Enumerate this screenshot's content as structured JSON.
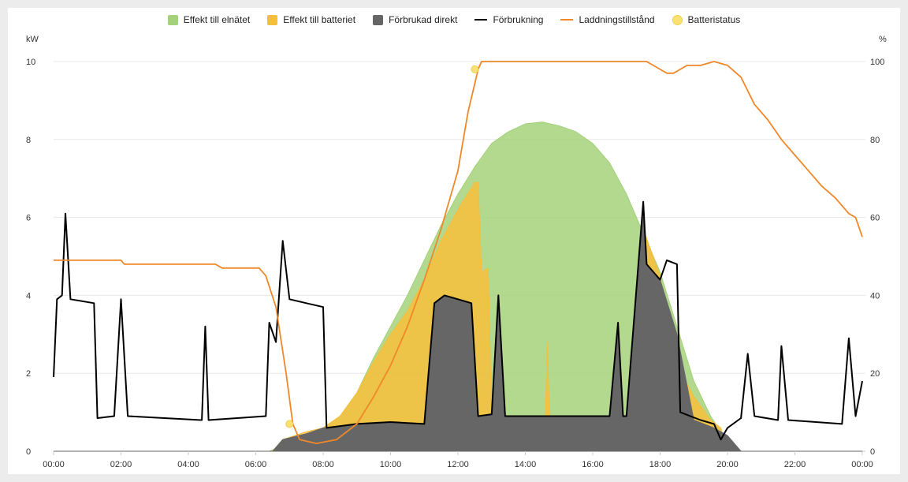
{
  "legend": [
    {
      "label": "Effekt till elnätet",
      "color": "#a4d27a",
      "shape": "box"
    },
    {
      "label": "Effekt till batteriet",
      "color": "#f7be3c",
      "shape": "box"
    },
    {
      "label": "Förbrukad direkt",
      "color": "#666666",
      "shape": "box"
    },
    {
      "label": "Förbrukning",
      "color": "#000000",
      "shape": "line"
    },
    {
      "label": "Laddningstillstånd",
      "color": "#f0882a",
      "shape": "line"
    },
    {
      "label": "Batteristatus",
      "color": "#fae174",
      "shape": "circle"
    }
  ],
  "chart_data": {
    "type": "area",
    "ylabel_left": "kW",
    "ylabel_right": "%",
    "ylim_left": [
      0,
      10
    ],
    "ylim_right": [
      0,
      100
    ],
    "yticks_left": [
      "0",
      "2",
      "4",
      "6",
      "8",
      "10"
    ],
    "yticks_right": [
      "0",
      "20",
      "40",
      "60",
      "80",
      "100"
    ],
    "xlim_hours": [
      0,
      24
    ],
    "xticks": [
      "00:00",
      "02:00",
      "04:00",
      "06:00",
      "08:00",
      "10:00",
      "12:00",
      "14:00",
      "16:00",
      "18:00",
      "20:00",
      "22:00",
      "00:00"
    ],
    "grid": true,
    "series": [
      {
        "name": "Effekt till elnätet",
        "kind": "area",
        "axis": "left",
        "color": "#a4d27a",
        "points": [
          [
            0,
            0
          ],
          [
            6.4,
            0
          ],
          [
            6.7,
            0.1
          ],
          [
            7.2,
            0.3
          ],
          [
            8.0,
            0.6
          ],
          [
            8.5,
            0.9
          ],
          [
            9.0,
            1.5
          ],
          [
            9.5,
            2.4
          ],
          [
            10.0,
            3.2
          ],
          [
            10.5,
            4.0
          ],
          [
            11.0,
            4.9
          ],
          [
            11.5,
            5.8
          ],
          [
            12.0,
            6.6
          ],
          [
            12.5,
            7.3
          ],
          [
            13.0,
            7.9
          ],
          [
            13.5,
            8.2
          ],
          [
            14.0,
            8.4
          ],
          [
            14.5,
            8.45
          ],
          [
            15.0,
            8.35
          ],
          [
            15.5,
            8.2
          ],
          [
            16.0,
            7.9
          ],
          [
            16.5,
            7.4
          ],
          [
            17.0,
            6.6
          ],
          [
            17.5,
            5.6
          ],
          [
            18.0,
            4.6
          ],
          [
            18.5,
            3.2
          ],
          [
            19.0,
            1.8
          ],
          [
            19.5,
            0.9
          ],
          [
            19.8,
            0.5
          ],
          [
            20.0,
            0
          ],
          [
            24,
            0
          ]
        ]
      },
      {
        "name": "Effekt till batteriet",
        "kind": "area",
        "axis": "left",
        "color": "#f7be3c",
        "points": [
          [
            0,
            0
          ],
          [
            6.5,
            0
          ],
          [
            6.8,
            0.3
          ],
          [
            7.5,
            0.5
          ],
          [
            8.0,
            0.6
          ],
          [
            8.5,
            0.9
          ],
          [
            9.0,
            1.5
          ],
          [
            9.5,
            2.3
          ],
          [
            10.0,
            3.0
          ],
          [
            10.5,
            3.6
          ],
          [
            11.0,
            4.4
          ],
          [
            11.5,
            5.4
          ],
          [
            12.0,
            6.2
          ],
          [
            12.5,
            6.9
          ],
          [
            12.6,
            6.9
          ],
          [
            12.7,
            4.6
          ],
          [
            12.9,
            4.7
          ],
          [
            13.0,
            0.8
          ],
          [
            14.6,
            0.9
          ],
          [
            14.65,
            2.8
          ],
          [
            14.72,
            0.9
          ],
          [
            17.0,
            0.9
          ],
          [
            17.5,
            5.7
          ],
          [
            18.0,
            4.5
          ],
          [
            18.5,
            2.2
          ],
          [
            19.0,
            1.4
          ],
          [
            19.5,
            0.8
          ],
          [
            19.8,
            0.6
          ],
          [
            20.0,
            0
          ],
          [
            24,
            0
          ]
        ]
      },
      {
        "name": "Förbrukad direkt",
        "kind": "area",
        "axis": "left",
        "color": "#666666",
        "points": [
          [
            0,
            0
          ],
          [
            6.5,
            0
          ],
          [
            6.8,
            0.3
          ],
          [
            7.5,
            0.45
          ],
          [
            8.0,
            0.6
          ],
          [
            9.0,
            0.7
          ],
          [
            10.0,
            0.75
          ],
          [
            11.0,
            0.7
          ],
          [
            11.3,
            3.8
          ],
          [
            11.6,
            4.0
          ],
          [
            12.0,
            3.9
          ],
          [
            12.4,
            3.8
          ],
          [
            12.6,
            0.9
          ],
          [
            13.0,
            0.95
          ],
          [
            13.2,
            4.0
          ],
          [
            13.4,
            0.9
          ],
          [
            16.5,
            0.9
          ],
          [
            16.75,
            3.3
          ],
          [
            16.9,
            0.9
          ],
          [
            17.0,
            0.9
          ],
          [
            17.5,
            6.4
          ],
          [
            17.6,
            4.8
          ],
          [
            18.0,
            4.4
          ],
          [
            18.5,
            3.0
          ],
          [
            19.0,
            0.8
          ],
          [
            19.6,
            0.6
          ],
          [
            20.0,
            0.4
          ],
          [
            20.4,
            0
          ],
          [
            24,
            0
          ]
        ]
      },
      {
        "name": "Förbrukning",
        "kind": "line",
        "axis": "left",
        "color": "#000000",
        "points": [
          [
            0,
            1.9
          ],
          [
            0.1,
            3.9
          ],
          [
            0.25,
            4.0
          ],
          [
            0.35,
            6.1
          ],
          [
            0.5,
            3.9
          ],
          [
            1.2,
            3.8
          ],
          [
            1.3,
            0.85
          ],
          [
            1.8,
            0.9
          ],
          [
            2.0,
            3.9
          ],
          [
            2.2,
            0.9
          ],
          [
            4.4,
            0.8
          ],
          [
            4.5,
            3.2
          ],
          [
            4.6,
            0.8
          ],
          [
            6.3,
            0.9
          ],
          [
            6.4,
            3.3
          ],
          [
            6.6,
            2.8
          ],
          [
            6.8,
            5.4
          ],
          [
            7.0,
            3.9
          ],
          [
            7.5,
            3.8
          ],
          [
            8.0,
            3.7
          ],
          [
            8.1,
            0.6
          ],
          [
            9.0,
            0.7
          ],
          [
            10.0,
            0.75
          ],
          [
            11.0,
            0.7
          ],
          [
            11.3,
            3.8
          ],
          [
            11.6,
            4.0
          ],
          [
            12.0,
            3.9
          ],
          [
            12.4,
            3.8
          ],
          [
            12.6,
            0.9
          ],
          [
            13.0,
            0.95
          ],
          [
            13.2,
            4.0
          ],
          [
            13.4,
            0.9
          ],
          [
            16.5,
            0.9
          ],
          [
            16.75,
            3.3
          ],
          [
            16.9,
            0.9
          ],
          [
            17.0,
            0.9
          ],
          [
            17.5,
            6.4
          ],
          [
            17.6,
            4.8
          ],
          [
            18.0,
            4.4
          ],
          [
            18.2,
            4.9
          ],
          [
            18.5,
            4.8
          ],
          [
            18.6,
            1.0
          ],
          [
            19.2,
            0.8
          ],
          [
            19.6,
            0.7
          ],
          [
            19.8,
            0.3
          ],
          [
            20.0,
            0.6
          ],
          [
            20.4,
            0.85
          ],
          [
            20.6,
            2.5
          ],
          [
            20.8,
            0.9
          ],
          [
            21.5,
            0.8
          ],
          [
            21.6,
            2.7
          ],
          [
            21.8,
            0.8
          ],
          [
            23.4,
            0.7
          ],
          [
            23.6,
            2.9
          ],
          [
            23.8,
            0.9
          ],
          [
            24,
            1.8
          ]
        ]
      },
      {
        "name": "Laddningstillstånd",
        "kind": "line",
        "axis": "right",
        "color": "#f0882a",
        "points": [
          [
            0,
            49
          ],
          [
            2.0,
            49
          ],
          [
            2.1,
            48
          ],
          [
            4.8,
            48
          ],
          [
            5.0,
            47
          ],
          [
            6.1,
            47
          ],
          [
            6.3,
            45
          ],
          [
            6.6,
            37
          ],
          [
            6.9,
            20
          ],
          [
            7.1,
            7
          ],
          [
            7.3,
            3
          ],
          [
            7.8,
            2
          ],
          [
            8.4,
            3
          ],
          [
            9.0,
            7
          ],
          [
            9.5,
            14
          ],
          [
            10.0,
            22
          ],
          [
            10.5,
            32
          ],
          [
            11.0,
            44
          ],
          [
            11.5,
            57
          ],
          [
            12.0,
            72
          ],
          [
            12.3,
            87
          ],
          [
            12.6,
            98
          ],
          [
            12.7,
            100
          ],
          [
            17.6,
            100
          ],
          [
            18.0,
            98
          ],
          [
            18.2,
            97
          ],
          [
            18.4,
            97
          ],
          [
            18.8,
            99
          ],
          [
            19.2,
            99
          ],
          [
            19.6,
            100
          ],
          [
            20.0,
            99
          ],
          [
            20.4,
            96
          ],
          [
            20.8,
            89
          ],
          [
            21.2,
            85
          ],
          [
            21.6,
            80
          ],
          [
            22.0,
            76
          ],
          [
            22.4,
            72
          ],
          [
            22.8,
            68
          ],
          [
            23.2,
            65
          ],
          [
            23.6,
            61
          ],
          [
            23.8,
            60
          ],
          [
            24,
            55
          ]
        ]
      },
      {
        "name": "Batteristatus",
        "kind": "points",
        "axis": "right",
        "color": "#fae174",
        "points": [
          [
            7.0,
            7
          ],
          [
            12.5,
            98
          ]
        ]
      }
    ]
  }
}
